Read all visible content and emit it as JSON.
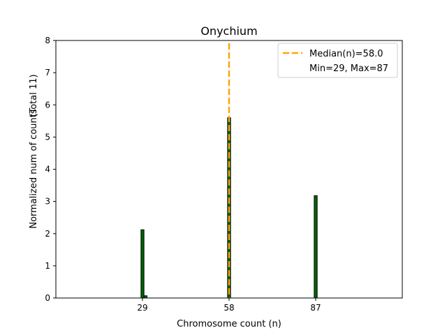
{
  "chart_data": {
    "type": "bar",
    "title": "Onychium",
    "xlabel": "Chromosome count (n)",
    "ylabel": "Normalized num of counts",
    "ylabel2": "(Total 11)",
    "xlim": [
      0,
      116
    ],
    "ylim": [
      0,
      8
    ],
    "xticks": [
      29,
      58,
      87
    ],
    "yticks": [
      0,
      1,
      2,
      3,
      4,
      5,
      6,
      7,
      8
    ],
    "bin_width": 1,
    "bars": [
      {
        "x": 29,
        "value": 2.12
      },
      {
        "x": 30,
        "value": 0.07
      },
      {
        "x": 58,
        "value": 5.6
      },
      {
        "x": 87,
        "value": 3.18
      }
    ],
    "median": 58.0,
    "legend": {
      "position": "top-right",
      "entries": [
        "Median(n)=58.0",
        "Min=29, Max=87"
      ]
    },
    "colors": {
      "bar": "#006400",
      "bar_edge": "#000000",
      "median": "#FFA500"
    }
  }
}
